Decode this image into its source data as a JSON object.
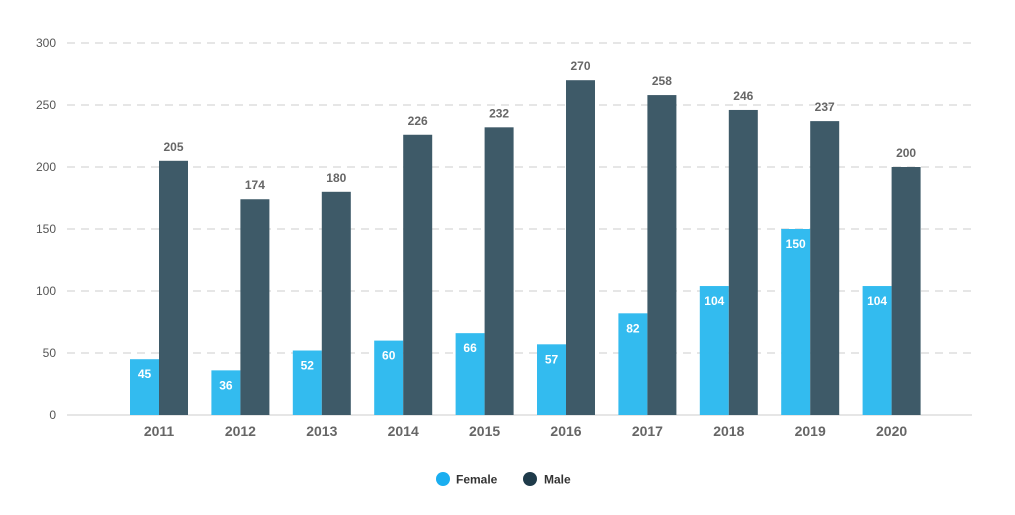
{
  "chart_data": {
    "type": "bar",
    "categories": [
      "2011",
      "2012",
      "2013",
      "2014",
      "2015",
      "2016",
      "2017",
      "2018",
      "2019",
      "2020"
    ],
    "series": [
      {
        "name": "Female",
        "color": "#33bbef",
        "values": [
          45,
          36,
          52,
          60,
          66,
          57,
          82,
          104,
          150,
          104
        ]
      },
      {
        "name": "Male",
        "color": "#3e5a68",
        "values": [
          205,
          174,
          180,
          226,
          232,
          270,
          258,
          246,
          237,
          200
        ]
      }
    ],
    "ylim": [
      0,
      300
    ],
    "yticks": [
      "0",
      "50",
      "100",
      "150",
      "200",
      "250",
      "300"
    ],
    "grid": true,
    "legend": {
      "placement": "bottom-center"
    },
    "legend_marker_colors": [
      "#1aaef0",
      "#1f3b4a"
    ]
  }
}
